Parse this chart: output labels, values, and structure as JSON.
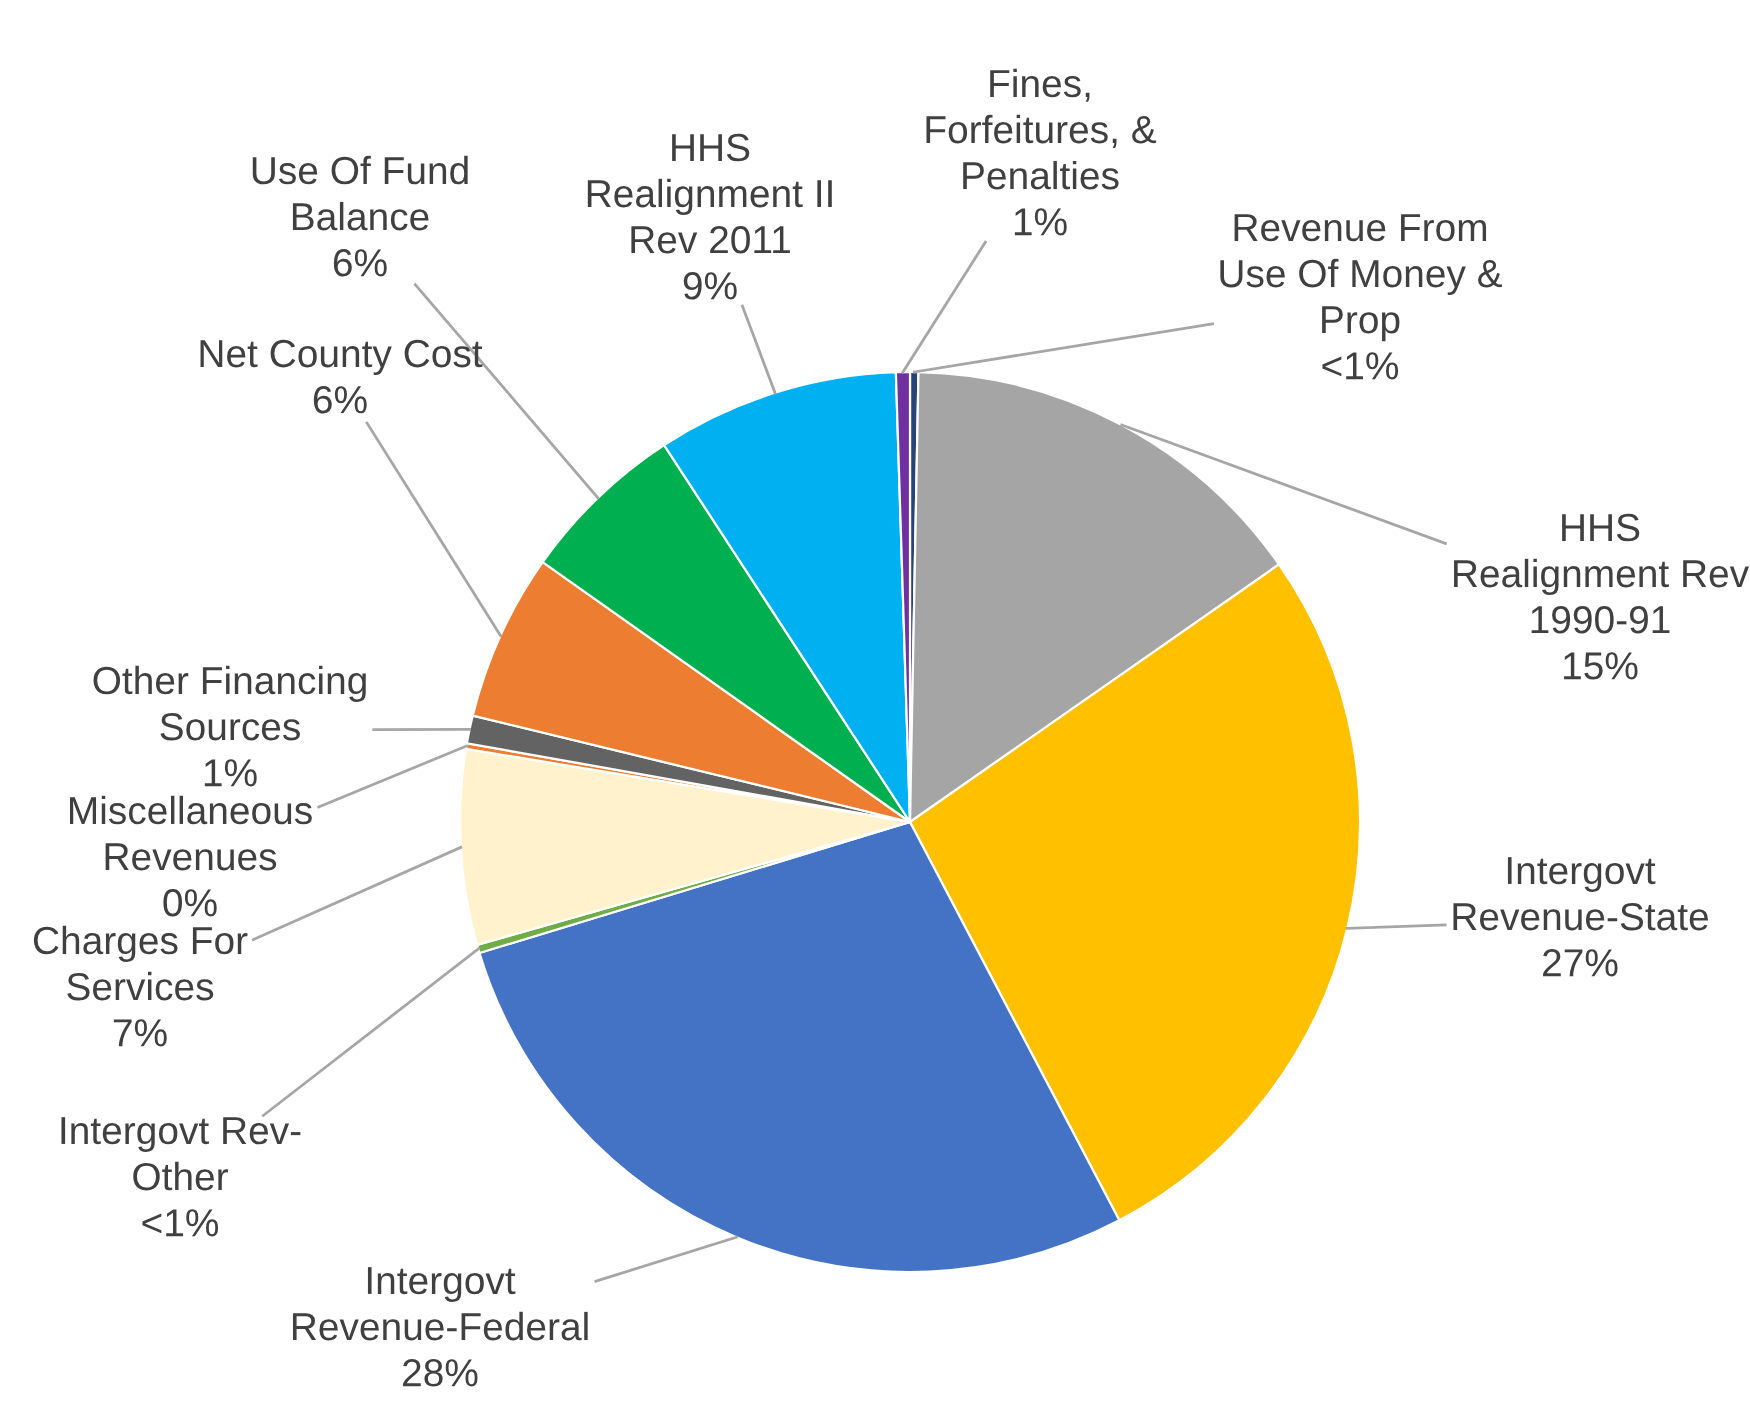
{
  "chart_data": {
    "type": "pie",
    "categories": [
      "Revenue From\nUse Of Money &\nProp",
      "HHS\nRealignment Rev\n1990-91",
      "Intergovt\nRevenue-State",
      "Intergovt\nRevenue-Federal",
      "Intergovt Rev-\nOther",
      "Charges For\nServices",
      "Miscellaneous\nRevenues",
      "Other Financing\nSources",
      "Net County Cost",
      "Use Of Fund\nBalance",
      "HHS\nRealignment II\nRev 2011",
      "Fines,\nForfeitures, &\nPenalties"
    ],
    "values": [
      0.3,
      15,
      27,
      28,
      0.3,
      7,
      0.2,
      1,
      6,
      6,
      8.7,
      0.5
    ],
    "value_labels": [
      "<1%",
      "15%",
      "27%",
      "28%",
      "<1%",
      "7%",
      "0%",
      "1%",
      "6%",
      "6%",
      "9%",
      "1%"
    ],
    "colors": [
      "#264478",
      "#a5a5a5",
      "#ffc000",
      "#4472c4",
      "#70ad47",
      "#fff2cc",
      "#ed7d31",
      "#636363",
      "#ed7d31",
      "#00b050",
      "#00b0f0",
      "#7030a0"
    ],
    "legend": false
  }
}
